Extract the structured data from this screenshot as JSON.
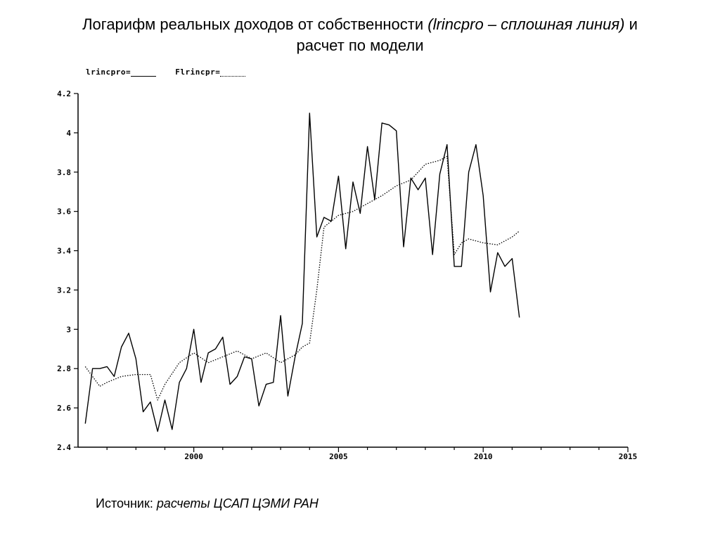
{
  "header": {
    "title_main": "Логарифм реальных доходов от собственности",
    "title_italic": "(lrincpro – сплошная линия)",
    "title_and": "и",
    "title_line2": "расчет по модели"
  },
  "legend": {
    "series1_label": "lrincpro=",
    "series2_label": "Flrincpr="
  },
  "footer": {
    "source_label": "Источник:",
    "source_value": "расчеты ЦСАП ЦЭМИ РАН"
  },
  "chart_data": {
    "type": "line",
    "xlim": [
      1996,
      2015
    ],
    "ylim": [
      2.4,
      4.2
    ],
    "x_ticks": [
      2000,
      2005,
      2010,
      2015
    ],
    "x_tick_labels": [
      "2000",
      "2005",
      "2010",
      "2015"
    ],
    "y_ticks": [
      2.4,
      2.6,
      2.8,
      3.0,
      3.2,
      3.4,
      3.6,
      3.8,
      4.0,
      4.2
    ],
    "y_tick_labels": [
      "2.4",
      "2.6",
      "2.8",
      "3",
      "3.2",
      "3.4",
      "3.6",
      "3.8",
      "4",
      "4.2"
    ],
    "grid": false,
    "legend_position": "top-left",
    "series": [
      {
        "name": "lrincpro",
        "style": "solid",
        "color": "#000000",
        "x": [
          1996.25,
          1996.5,
          1996.75,
          1997.0,
          1997.25,
          1997.5,
          1997.75,
          1998.0,
          1998.25,
          1998.5,
          1998.75,
          1999.0,
          1999.25,
          1999.5,
          1999.75,
          2000.0,
          2000.25,
          2000.5,
          2000.75,
          2001.0,
          2001.25,
          2001.5,
          2001.75,
          2002.0,
          2002.25,
          2002.5,
          2002.75,
          2003.0,
          2003.25,
          2003.5,
          2003.75,
          2004.0,
          2004.25,
          2004.5,
          2004.75,
          2005.0,
          2005.25,
          2005.5,
          2005.75,
          2006.0,
          2006.25,
          2006.5,
          2006.75,
          2007.0,
          2007.25,
          2007.5,
          2007.75,
          2008.0,
          2008.25,
          2008.5,
          2008.75,
          2009.0,
          2009.25,
          2009.5,
          2009.75,
          2010.0,
          2010.25,
          2010.5,
          2010.75,
          2011.0,
          2011.25
        ],
        "y": [
          2.52,
          2.8,
          2.8,
          2.81,
          2.76,
          2.91,
          2.98,
          2.85,
          2.58,
          2.63,
          2.48,
          2.64,
          2.49,
          2.73,
          2.8,
          3.0,
          2.73,
          2.88,
          2.9,
          2.96,
          2.72,
          2.76,
          2.86,
          2.85,
          2.61,
          2.72,
          2.73,
          3.07,
          2.66,
          2.86,
          3.03,
          4.1,
          3.47,
          3.57,
          3.55,
          3.78,
          3.41,
          3.75,
          3.59,
          3.93,
          3.66,
          4.05,
          4.04,
          4.01,
          3.42,
          3.77,
          3.71,
          3.77,
          3.38,
          3.79,
          3.94,
          3.32,
          3.32,
          3.8,
          3.94,
          3.68,
          3.19,
          3.39,
          3.32,
          3.36,
          3.06
        ]
      },
      {
        "name": "Flrincpr",
        "style": "dotted",
        "color": "#000000",
        "x": [
          1996.25,
          1996.75,
          1997.0,
          1997.5,
          1998.0,
          1998.5,
          1998.75,
          1999.0,
          1999.5,
          2000.0,
          2000.5,
          2001.0,
          2001.5,
          2002.0,
          2002.5,
          2003.0,
          2003.5,
          2003.75,
          2004.0,
          2004.25,
          2004.5,
          2005.0,
          2005.5,
          2006.0,
          2006.5,
          2007.0,
          2007.5,
          2008.0,
          2008.5,
          2008.75,
          2009.0,
          2009.25,
          2009.5,
          2009.75,
          2010.0,
          2010.5,
          2011.0,
          2011.25
        ],
        "y": [
          2.81,
          2.71,
          2.73,
          2.76,
          2.77,
          2.77,
          2.64,
          2.72,
          2.83,
          2.88,
          2.83,
          2.86,
          2.89,
          2.85,
          2.88,
          2.83,
          2.87,
          2.91,
          2.93,
          3.2,
          3.52,
          3.58,
          3.6,
          3.64,
          3.68,
          3.73,
          3.76,
          3.84,
          3.86,
          3.88,
          3.38,
          3.44,
          3.46,
          3.45,
          3.44,
          3.43,
          3.47,
          3.5
        ]
      }
    ]
  }
}
